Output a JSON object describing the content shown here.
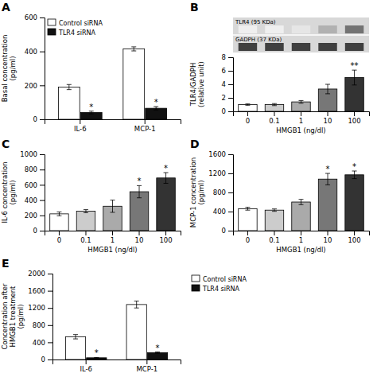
{
  "chart_data": [
    {
      "type": "bar",
      "title": "A",
      "categories": [
        "IL-6",
        "MCP-1"
      ],
      "series": [
        {
          "name": "Control siRNA",
          "color": "#ffffff",
          "values": [
            190,
            415
          ],
          "errors": [
            15,
            12
          ]
        },
        {
          "name": "TLR4 siRNA",
          "color": "#111111",
          "values": [
            40,
            65
          ],
          "errors": [
            8,
            10
          ]
        }
      ],
      "ylabel": "Basal concentration\n(pg/ml)",
      "ylim": [
        0,
        600
      ],
      "yticks": [
        0,
        200,
        400,
        600
      ],
      "legend": "upper-left",
      "annotations": [
        {
          "text": "*",
          "series": 1,
          "index": 0
        },
        {
          "text": "*",
          "series": 1,
          "index": 1
        }
      ]
    },
    {
      "type": "bar",
      "title": "B",
      "categories": [
        "0",
        "0.1",
        "1",
        "10",
        "100"
      ],
      "values": [
        1.0,
        1.0,
        1.4,
        3.3,
        5.0
      ],
      "errors": [
        0.1,
        0.15,
        0.2,
        0.7,
        1.1
      ],
      "colors": [
        "#ffffff",
        "#cccccc",
        "#aaaaaa",
        "#777777",
        "#333333"
      ],
      "ylabel": "TLR4/GADPH\n(relative unit)",
      "xlabel": "HMGB1 (ng/dl)",
      "ylim": [
        0,
        8
      ],
      "yticks": [
        0,
        2,
        4,
        6,
        8
      ],
      "annotations": [
        {
          "text": "**",
          "index": 4
        }
      ],
      "blot": {
        "labels": [
          "TLR4 (95 KDa)",
          "GADPH (37 KDa)"
        ]
      }
    },
    {
      "type": "bar",
      "title": "C",
      "categories": [
        "0",
        "0.1",
        "1",
        "10",
        "100"
      ],
      "values": [
        220,
        255,
        320,
        510,
        690
      ],
      "errors": [
        25,
        20,
        80,
        80,
        70
      ],
      "colors": [
        "#ffffff",
        "#cccccc",
        "#aaaaaa",
        "#777777",
        "#333333"
      ],
      "ylabel": "IL-6 concentration\n(pg/ml)",
      "xlabel": "HMGB1 (ng/dl)",
      "ylim": [
        0,
        1000
      ],
      "yticks": [
        0,
        200,
        400,
        600,
        800,
        1000
      ],
      "annotations": [
        {
          "text": "*",
          "index": 3
        },
        {
          "text": "*",
          "index": 4
        }
      ]
    },
    {
      "type": "bar",
      "title": "D",
      "categories": [
        "0",
        "0.1",
        "1",
        "10",
        "100"
      ],
      "values": [
        460,
        430,
        600,
        1080,
        1170
      ],
      "errors": [
        30,
        25,
        55,
        120,
        80
      ],
      "colors": [
        "#ffffff",
        "#cccccc",
        "#aaaaaa",
        "#777777",
        "#333333"
      ],
      "ylabel": "MCP-1 concentration\n(pg/ml)",
      "xlabel": "HMGB1 (ng/dl)",
      "ylim": [
        0,
        1600
      ],
      "yticks": [
        0,
        400,
        800,
        1200,
        1600
      ],
      "annotations": [
        {
          "text": "*",
          "index": 3
        },
        {
          "text": "*",
          "index": 4
        }
      ]
    },
    {
      "type": "bar",
      "title": "E",
      "categories": [
        "IL-6",
        "MCP-1"
      ],
      "series": [
        {
          "name": "Control siRNA",
          "color": "#ffffff",
          "values": [
            530,
            1280
          ],
          "errors": [
            50,
            80
          ]
        },
        {
          "name": "TLR4 siRNA",
          "color": "#111111",
          "values": [
            40,
            160
          ],
          "errors": [
            8,
            15
          ]
        }
      ],
      "ylabel": "Concentration after\nHMGB1 treatment\n(pg/ml)",
      "ylim": [
        0,
        2000
      ],
      "yticks": [
        0,
        400,
        800,
        1200,
        1600,
        2000
      ],
      "legend": "upper-right",
      "annotations": [
        {
          "text": "*",
          "series": 1,
          "index": 0
        },
        {
          "text": "*",
          "series": 1,
          "index": 1
        }
      ]
    }
  ]
}
